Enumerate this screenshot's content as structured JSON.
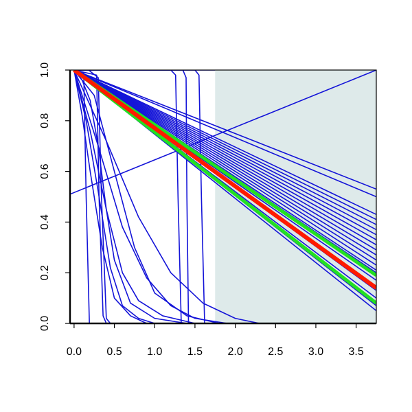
{
  "chart_data": {
    "type": "line",
    "title": "",
    "xlabel": "",
    "ylabel": "",
    "xlim": [
      -0.05,
      3.75
    ],
    "ylim": [
      0.0,
      1.0
    ],
    "x_ticks": [
      "0.0",
      "0.5",
      "1.0",
      "1.5",
      "2.0",
      "2.5",
      "3.0",
      "3.5"
    ],
    "y_ticks": [
      "0.0",
      "0.2",
      "0.4",
      "0.6",
      "0.8",
      "1.0"
    ],
    "shaded_region": {
      "x_from": 1.75,
      "x_to": 3.75,
      "color": "#deeaea"
    },
    "grid": false,
    "legend": "none",
    "colors": {
      "blue": "#1414d8",
      "red": "#ff1a00",
      "green": "#22e022",
      "axis": "#000000"
    },
    "series": [
      {
        "color": "blue",
        "points": [
          [
            0,
            1.0
          ],
          [
            0.12,
            0.99
          ],
          [
            0.15,
            0.5
          ],
          [
            0.19,
            0.0
          ]
        ]
      },
      {
        "color": "blue",
        "points": [
          [
            0,
            1.0
          ],
          [
            0.18,
            1.0
          ],
          [
            0.3,
            0.97
          ],
          [
            0.34,
            0.5
          ],
          [
            0.4,
            0.02
          ],
          [
            0.45,
            0.0
          ]
        ]
      },
      {
        "color": "blue",
        "points": [
          [
            0,
            1.0
          ],
          [
            0.28,
            0.98
          ],
          [
            0.31,
            0.5
          ],
          [
            0.36,
            0.03
          ],
          [
            0.4,
            0.0
          ]
        ]
      },
      {
        "color": "blue",
        "points": [
          [
            0,
            1.0
          ],
          [
            0.15,
            0.8
          ],
          [
            0.3,
            0.52
          ],
          [
            0.45,
            0.22
          ],
          [
            0.6,
            0.07
          ],
          [
            0.8,
            0.02
          ],
          [
            1.0,
            0.0
          ]
        ]
      },
      {
        "color": "blue",
        "points": [
          [
            0,
            1.0
          ],
          [
            0.1,
            0.82
          ],
          [
            0.2,
            0.6
          ],
          [
            0.35,
            0.3
          ],
          [
            0.5,
            0.1
          ],
          [
            0.7,
            0.03
          ],
          [
            0.9,
            0.0
          ]
        ]
      },
      {
        "color": "blue",
        "points": [
          [
            0,
            1.0
          ],
          [
            0.2,
            0.76
          ],
          [
            0.4,
            0.45
          ],
          [
            0.6,
            0.2
          ],
          [
            0.8,
            0.09
          ],
          [
            1.1,
            0.03
          ],
          [
            1.5,
            0.0
          ]
        ]
      },
      {
        "color": "blue",
        "points": [
          [
            0,
            1.0
          ],
          [
            0.3,
            0.7
          ],
          [
            0.6,
            0.38
          ],
          [
            0.9,
            0.18
          ],
          [
            1.2,
            0.07
          ],
          [
            1.5,
            0.02
          ],
          [
            1.9,
            0.0
          ]
        ]
      },
      {
        "color": "blue",
        "points": [
          [
            0,
            1.0
          ],
          [
            0.4,
            0.72
          ],
          [
            0.8,
            0.42
          ],
          [
            1.2,
            0.2
          ],
          [
            1.6,
            0.08
          ],
          [
            2.0,
            0.02
          ],
          [
            2.3,
            0.0
          ]
        ]
      },
      {
        "color": "blue",
        "points": [
          [
            0,
            1.0
          ],
          [
            0.25,
            0.9
          ],
          [
            0.5,
            0.6
          ],
          [
            0.75,
            0.3
          ],
          [
            1.0,
            0.12
          ],
          [
            1.4,
            0.03
          ],
          [
            1.8,
            0.0
          ]
        ]
      },
      {
        "color": "blue",
        "points": [
          [
            0,
            1.0
          ],
          [
            0.1,
            0.96
          ],
          [
            0.2,
            0.88
          ],
          [
            0.3,
            0.7
          ],
          [
            0.4,
            0.45
          ],
          [
            0.5,
            0.25
          ],
          [
            0.7,
            0.08
          ],
          [
            1.0,
            0.02
          ],
          [
            1.4,
            0.0
          ]
        ]
      },
      {
        "color": "blue",
        "points": [
          [
            0,
            1.0
          ],
          [
            1.2,
            1.0
          ],
          [
            1.26,
            0.98
          ],
          [
            1.29,
            0.5
          ],
          [
            1.33,
            0.0
          ]
        ]
      },
      {
        "color": "blue",
        "points": [
          [
            0,
            1.0
          ],
          [
            1.35,
            1.0
          ],
          [
            1.39,
            0.97
          ],
          [
            1.4,
            0.5
          ],
          [
            1.42,
            0.0
          ]
        ]
      },
      {
        "color": "blue",
        "points": [
          [
            0,
            1.0
          ],
          [
            1.5,
            1.0
          ],
          [
            1.55,
            0.98
          ],
          [
            1.58,
            0.5
          ],
          [
            1.62,
            0.0
          ]
        ]
      },
      {
        "color": "blue",
        "points": [
          [
            0,
            1.0
          ],
          [
            1.0,
            1.0
          ],
          [
            1.75,
            1.0
          ]
        ]
      },
      {
        "color": "blue",
        "points": [
          [
            -0.05,
            0.51
          ],
          [
            3.75,
            1.0
          ]
        ]
      },
      {
        "color": "blue",
        "points": [
          [
            0,
            1.0
          ],
          [
            3.75,
            0.53
          ]
        ]
      },
      {
        "color": "blue",
        "points": [
          [
            0,
            1.0
          ],
          [
            3.75,
            0.5
          ]
        ]
      },
      {
        "color": "blue",
        "points": [
          [
            0,
            1.0
          ],
          [
            3.75,
            0.43
          ]
        ]
      },
      {
        "color": "blue",
        "points": [
          [
            0,
            1.0
          ],
          [
            3.75,
            0.41
          ]
        ]
      },
      {
        "color": "blue",
        "points": [
          [
            0,
            1.0
          ],
          [
            3.75,
            0.39
          ]
        ]
      },
      {
        "color": "blue",
        "points": [
          [
            0,
            1.0
          ],
          [
            3.75,
            0.37
          ]
        ]
      },
      {
        "color": "blue",
        "points": [
          [
            0,
            1.0
          ],
          [
            3.75,
            0.35
          ]
        ]
      },
      {
        "color": "blue",
        "points": [
          [
            0,
            1.0
          ],
          [
            3.75,
            0.33
          ]
        ]
      },
      {
        "color": "blue",
        "points": [
          [
            0,
            1.0
          ],
          [
            3.75,
            0.31
          ]
        ]
      },
      {
        "color": "blue",
        "points": [
          [
            0,
            1.0
          ],
          [
            3.75,
            0.29
          ]
        ]
      },
      {
        "color": "blue",
        "points": [
          [
            0,
            1.0
          ],
          [
            3.75,
            0.27
          ]
        ]
      },
      {
        "color": "blue",
        "points": [
          [
            0,
            1.0
          ],
          [
            3.75,
            0.25
          ]
        ]
      },
      {
        "color": "blue",
        "points": [
          [
            0,
            1.0
          ],
          [
            3.75,
            0.23
          ]
        ]
      },
      {
        "color": "blue",
        "points": [
          [
            0,
            1.0
          ],
          [
            3.75,
            0.21
          ]
        ]
      },
      {
        "color": "blue",
        "points": [
          [
            0,
            1.0
          ],
          [
            3.75,
            0.2
          ]
        ]
      },
      {
        "color": "blue",
        "points": [
          [
            0,
            1.0
          ],
          [
            3.75,
            0.17
          ]
        ]
      },
      {
        "color": "blue",
        "points": [
          [
            0,
            1.0
          ],
          [
            3.75,
            0.13
          ]
        ]
      },
      {
        "color": "blue",
        "points": [
          [
            0,
            1.0
          ],
          [
            3.75,
            0.1
          ]
        ]
      },
      {
        "color": "blue",
        "points": [
          [
            0,
            1.0
          ],
          [
            3.75,
            0.07
          ]
        ]
      },
      {
        "color": "blue",
        "points": [
          [
            0,
            1.0
          ],
          [
            3.75,
            0.05
          ]
        ]
      },
      {
        "color": "red",
        "points": [
          [
            0,
            1.0
          ],
          [
            3.75,
            0.14
          ]
        ]
      },
      {
        "color": "green",
        "points": [
          [
            0,
            1.0
          ],
          [
            3.75,
            0.19
          ]
        ]
      },
      {
        "color": "green",
        "points": [
          [
            0,
            1.0
          ],
          [
            3.75,
            0.08
          ]
        ]
      }
    ]
  }
}
